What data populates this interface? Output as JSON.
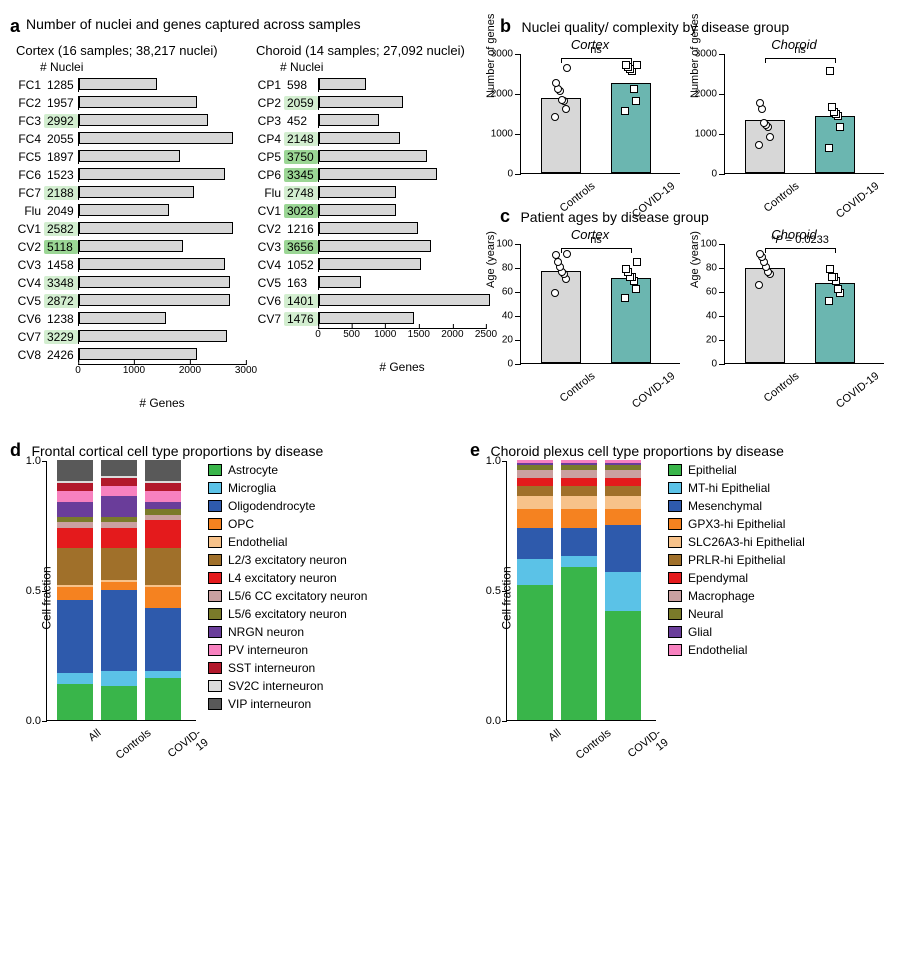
{
  "colors": {
    "bar_gray": "#d7d7d7",
    "bar_teal": "#6bb6b0",
    "hl_light": "#d3eed0",
    "hl_dark": "#9bd695"
  },
  "panel_a": {
    "title": "Number of nuclei and genes captured across samples",
    "cortex": {
      "header": "Cortex (16 samples; 38,217 nuclei)",
      "axis_label": "# Genes",
      "xmax": 3000,
      "xticks": [
        0,
        1000,
        2000,
        3000
      ],
      "rows": [
        {
          "id": "FC1",
          "val": 1285,
          "genes": 1400,
          "hl": 0
        },
        {
          "id": "FC2",
          "val": 1957,
          "genes": 2100,
          "hl": 0
        },
        {
          "id": "FC3",
          "val": 2992,
          "genes": 2300,
          "hl": 1
        },
        {
          "id": "FC4",
          "val": 2055,
          "genes": 2750,
          "hl": 0
        },
        {
          "id": "FC5",
          "val": 1897,
          "genes": 1800,
          "hl": 0
        },
        {
          "id": "FC6",
          "val": 1523,
          "genes": 2600,
          "hl": 0
        },
        {
          "id": "FC7",
          "val": 2188,
          "genes": 2050,
          "hl": 1
        },
        {
          "id": "Flu",
          "val": 2049,
          "genes": 1600,
          "hl": 0
        },
        {
          "id": "CV1",
          "val": 2582,
          "genes": 2750,
          "hl": 1
        },
        {
          "id": "CV2",
          "val": 5118,
          "genes": 1850,
          "hl": 2
        },
        {
          "id": "CV3",
          "val": 1458,
          "genes": 2600,
          "hl": 0
        },
        {
          "id": "CV4",
          "val": 3348,
          "genes": 2700,
          "hl": 1
        },
        {
          "id": "CV5",
          "val": 2872,
          "genes": 2700,
          "hl": 1
        },
        {
          "id": "CV6",
          "val": 1238,
          "genes": 1550,
          "hl": 0
        },
        {
          "id": "CV7",
          "val": 3229,
          "genes": 2650,
          "hl": 1
        },
        {
          "id": "CV8",
          "val": 2426,
          "genes": 2100,
          "hl": 0
        }
      ]
    },
    "choroid": {
      "header": "Choroid (14 samples; 27,092 nuclei)",
      "axis_label": "# Genes",
      "xmax": 2500,
      "xticks": [
        0,
        500,
        1000,
        1500,
        2000,
        2500
      ],
      "rows": [
        {
          "id": "CP1",
          "val": 598,
          "genes": 700,
          "hl": 0
        },
        {
          "id": "CP2",
          "val": 2059,
          "genes": 1250,
          "hl": 1
        },
        {
          "id": "CP3",
          "val": 452,
          "genes": 900,
          "hl": 0
        },
        {
          "id": "CP4",
          "val": 2148,
          "genes": 1200,
          "hl": 1
        },
        {
          "id": "CP5",
          "val": 3750,
          "genes": 1600,
          "hl": 2
        },
        {
          "id": "CP6",
          "val": 3345,
          "genes": 1750,
          "hl": 2
        },
        {
          "id": "Flu",
          "val": 2748,
          "genes": 1150,
          "hl": 1
        },
        {
          "id": "CV1",
          "val": 3028,
          "genes": 1150,
          "hl": 2
        },
        {
          "id": "CV2",
          "val": 1216,
          "genes": 1480,
          "hl": 0
        },
        {
          "id": "CV3",
          "val": 3656,
          "genes": 1660,
          "hl": 2
        },
        {
          "id": "CV4",
          "val": 1052,
          "genes": 1520,
          "hl": 0
        },
        {
          "id": "CV5",
          "val": 163,
          "genes": 620,
          "hl": 0
        },
        {
          "id": "CV6",
          "val": 1401,
          "genes": 2550,
          "hl": 1
        },
        {
          "id": "CV7",
          "val": 1476,
          "genes": 1420,
          "hl": 1
        }
      ]
    }
  },
  "panel_b": {
    "title": "Nuclei quality/ complexity by disease group",
    "ylab": "Number of genes",
    "cortex": {
      "subt": "Cortex",
      "ymax": 3000,
      "yticks": [
        0,
        1000,
        2000,
        3000
      ],
      "bars": [
        {
          "label": "Controls",
          "val": 1880,
          "color": "#d7d7d7",
          "shape": "circle",
          "points": [
            1400,
            1600,
            1800,
            1820,
            2050,
            2100,
            2250,
            2620
          ]
        },
        {
          "label": "COVID-19",
          "val": 2240,
          "color": "#6bb6b0",
          "shape": "square",
          "points": [
            1550,
            1800,
            2100,
            2550,
            2600,
            2650,
            2700,
            2700
          ]
        }
      ],
      "sig": "ns"
    },
    "choroid": {
      "subt": "Choroid",
      "ymax": 3000,
      "yticks": [
        0,
        1000,
        2000,
        3000
      ],
      "bars": [
        {
          "label": "Controls",
          "val": 1320,
          "color": "#d7d7d7",
          "shape": "circle",
          "points": [
            700,
            900,
            1150,
            1200,
            1250,
            1600,
            1750
          ]
        },
        {
          "label": "COVID-19",
          "val": 1420,
          "color": "#6bb6b0",
          "shape": "square",
          "points": [
            620,
            1150,
            1420,
            1480,
            1520,
            1660,
            2550
          ]
        }
      ],
      "sig": "ns"
    }
  },
  "panel_c": {
    "title": "Patient ages by disease group",
    "ylab": "Age (years)",
    "cortex": {
      "subt": "Cortex",
      "ymax": 100,
      "yticks": [
        0,
        20,
        40,
        60,
        80,
        100
      ],
      "bars": [
        {
          "label": "Controls",
          "val": 77,
          "color": "#d7d7d7",
          "shape": "circle",
          "points": [
            58,
            70,
            74,
            76,
            80,
            84,
            90,
            91
          ]
        },
        {
          "label": "COVID-19",
          "val": 71,
          "color": "#6bb6b0",
          "shape": "square",
          "points": [
            54,
            62,
            68,
            72,
            72,
            76,
            78,
            84
          ]
        }
      ],
      "sig": "ns"
    },
    "choroid": {
      "subt": "Choroid",
      "ymax": 100,
      "yticks": [
        0,
        20,
        40,
        60,
        80,
        100
      ],
      "bars": [
        {
          "label": "Controls",
          "val": 79,
          "color": "#d7d7d7",
          "shape": "circle",
          "points": [
            65,
            74,
            76,
            80,
            84,
            88,
            91
          ]
        },
        {
          "label": "COVID-19",
          "val": 67,
          "color": "#6bb6b0",
          "shape": "square",
          "points": [
            52,
            58,
            62,
            68,
            72,
            72,
            78
          ]
        }
      ],
      "sig": "*P = 0.0233",
      "sig_italic": true
    }
  },
  "panel_d": {
    "title": "Frontal cortical cell type proportions by disease",
    "ylab": "Cell fraction",
    "yticks": [
      0,
      0.5,
      1.0
    ],
    "xlabels": [
      "All",
      "Controls",
      "COVID-19"
    ],
    "legend": [
      {
        "name": "Astrocyte",
        "color": "#39b54a"
      },
      {
        "name": "Microglia",
        "color": "#5bc2e7"
      },
      {
        "name": "Oligodendrocyte",
        "color": "#2e5aac"
      },
      {
        "name": "OPC",
        "color": "#f58220"
      },
      {
        "name": "Endothelial",
        "color": "#f7c28a"
      },
      {
        "name": "L2/3 excitatory neuron",
        "color": "#a0702a"
      },
      {
        "name": "L4 excitatory neuron",
        "color": "#e41a1c"
      },
      {
        "name": "L5/6 CC excitatory neuron",
        "color": "#caa0a0"
      },
      {
        "name": "L5/6 excitatory neuron",
        "color": "#7a7a2a"
      },
      {
        "name": "NRGN neuron",
        "color": "#6a3d9a"
      },
      {
        "name": "PV interneuron",
        "color": "#f781bf"
      },
      {
        "name": "SST interneuron",
        "color": "#b2182b"
      },
      {
        "name": "SV2C interneuron",
        "color": "#dcdcdc"
      },
      {
        "name": "VIP interneuron",
        "color": "#595959"
      }
    ],
    "bars": [
      {
        "fracs": [
          0.14,
          0.04,
          0.28,
          0.05,
          0.01,
          0.14,
          0.08,
          0.02,
          0.02,
          0.06,
          0.04,
          0.03,
          0.01,
          0.08
        ]
      },
      {
        "fracs": [
          0.13,
          0.06,
          0.31,
          0.03,
          0.01,
          0.12,
          0.08,
          0.02,
          0.02,
          0.08,
          0.04,
          0.03,
          0.01,
          0.06
        ]
      },
      {
        "fracs": [
          0.16,
          0.03,
          0.24,
          0.08,
          0.01,
          0.14,
          0.11,
          0.02,
          0.02,
          0.03,
          0.04,
          0.03,
          0.01,
          0.08
        ]
      }
    ]
  },
  "panel_e": {
    "title": "Choroid plexus cell type proportions by disease",
    "ylab": "Cell fraction",
    "yticks": [
      0,
      0.5,
      1.0
    ],
    "xlabels": [
      "All",
      "Controls",
      "COVID-19"
    ],
    "legend": [
      {
        "name": "Epithelial",
        "color": "#39b54a"
      },
      {
        "name": "MT-hi Epithelial",
        "color": "#5bc2e7"
      },
      {
        "name": "Mesenchymal",
        "color": "#2e5aac"
      },
      {
        "name": "GPX3-hi Epithelial",
        "color": "#f58220"
      },
      {
        "name": "SLC26A3-hi Epithelial",
        "color": "#f7c28a"
      },
      {
        "name": "PRLR-hi Epithelial",
        "color": "#a0702a"
      },
      {
        "name": "Ependymal",
        "color": "#e41a1c"
      },
      {
        "name": "Macrophage",
        "color": "#caa0a0"
      },
      {
        "name": "Neural",
        "color": "#7a7a2a"
      },
      {
        "name": "Glial",
        "color": "#6a3d9a"
      },
      {
        "name": "Endothelial",
        "color": "#f781bf"
      }
    ],
    "bars": [
      {
        "fracs": [
          0.52,
          0.1,
          0.12,
          0.07,
          0.05,
          0.04,
          0.03,
          0.03,
          0.02,
          0.01,
          0.01
        ]
      },
      {
        "fracs": [
          0.59,
          0.04,
          0.11,
          0.07,
          0.05,
          0.04,
          0.03,
          0.03,
          0.02,
          0.01,
          0.01
        ]
      },
      {
        "fracs": [
          0.42,
          0.15,
          0.18,
          0.06,
          0.05,
          0.04,
          0.03,
          0.03,
          0.02,
          0.01,
          0.01
        ]
      }
    ]
  }
}
